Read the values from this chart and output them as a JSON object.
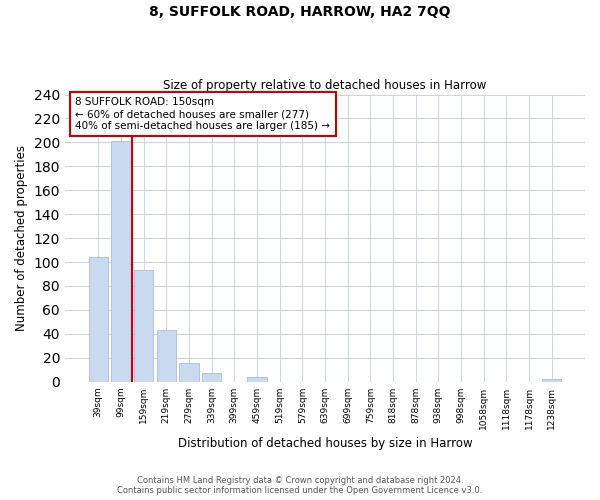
{
  "title": "8, SUFFOLK ROAD, HARROW, HA2 7QQ",
  "subtitle": "Size of property relative to detached houses in Harrow",
  "xlabel": "Distribution of detached houses by size in Harrow",
  "ylabel": "Number of detached properties",
  "categories": [
    "39sqm",
    "99sqm",
    "159sqm",
    "219sqm",
    "279sqm",
    "339sqm",
    "399sqm",
    "459sqm",
    "519sqm",
    "579sqm",
    "639sqm",
    "699sqm",
    "759sqm",
    "818sqm",
    "878sqm",
    "938sqm",
    "998sqm",
    "1058sqm",
    "1118sqm",
    "1178sqm",
    "1238sqm"
  ],
  "values": [
    104,
    201,
    93,
    43,
    16,
    7,
    0,
    4,
    0,
    0,
    0,
    0,
    0,
    0,
    0,
    0,
    0,
    0,
    0,
    0,
    2
  ],
  "bar_color": "#c9d9f0",
  "bar_edge_color": "#a8bfd8",
  "vline_color": "#cc0000",
  "annotation_box_text": "8 SUFFOLK ROAD: 150sqm\n← 60% of detached houses are smaller (277)\n40% of semi-detached houses are larger (185) →",
  "ylim": [
    0,
    240
  ],
  "yticks": [
    0,
    20,
    40,
    60,
    80,
    100,
    120,
    140,
    160,
    180,
    200,
    220,
    240
  ],
  "footer_line1": "Contains HM Land Registry data © Crown copyright and database right 2024.",
  "footer_line2": "Contains public sector information licensed under the Open Government Licence v3.0.",
  "bg_color": "#ffffff",
  "grid_color": "#c8d4e0"
}
